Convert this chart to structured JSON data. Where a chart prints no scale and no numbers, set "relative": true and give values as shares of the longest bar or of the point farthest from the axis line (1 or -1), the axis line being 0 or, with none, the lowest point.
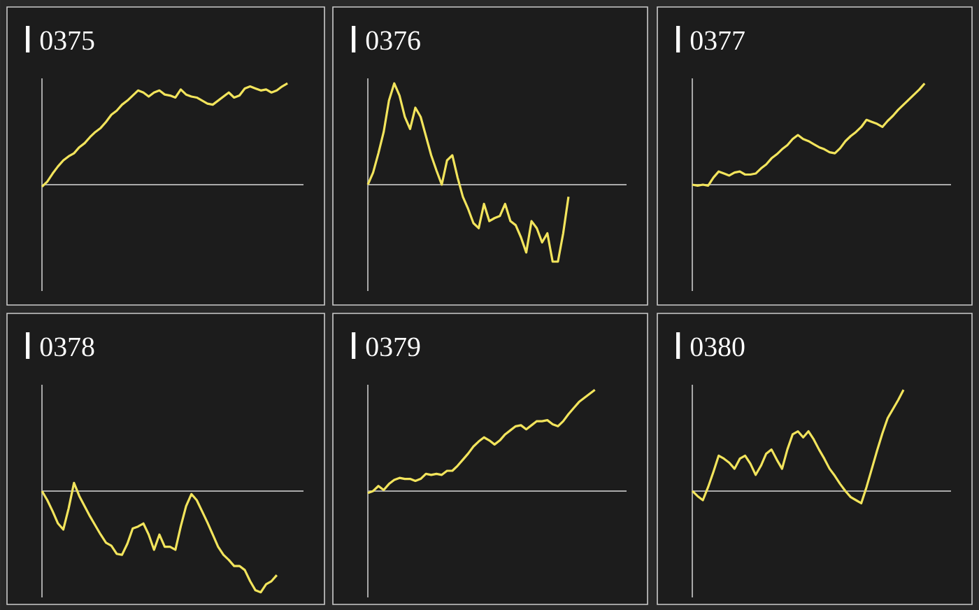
{
  "chart_data": [
    {
      "type": "line",
      "title": "0375",
      "color": "#f2e45c",
      "relative": true,
      "categories": [
        null,
        null,
        null,
        null,
        null,
        null,
        null,
        null,
        null,
        null,
        null,
        null,
        null,
        null,
        null,
        null,
        null,
        null,
        null,
        null,
        null,
        null,
        null,
        null,
        null,
        null,
        null,
        null,
        null,
        null,
        null,
        null,
        null,
        null,
        null,
        null,
        null,
        null,
        null,
        null,
        null,
        null,
        null,
        null,
        null,
        null,
        null,
        null,
        null,
        null
      ],
      "values": [
        -0.02,
        0.03,
        0.11,
        0.18,
        0.24,
        0.28,
        0.31,
        0.37,
        0.41,
        0.47,
        0.52,
        0.56,
        0.62,
        0.69,
        0.73,
        0.79,
        0.83,
        0.88,
        0.93,
        0.91,
        0.87,
        0.91,
        0.93,
        0.89,
        0.88,
        0.86,
        0.94,
        0.89,
        0.87,
        0.86,
        0.83,
        0.8,
        0.79,
        0.83,
        0.87,
        0.91,
        0.86,
        0.88,
        0.95,
        0.97,
        0.95,
        0.93,
        0.94,
        0.91,
        0.93,
        0.97,
        1.0,
        null,
        null,
        null
      ]
    },
    {
      "type": "line",
      "title": "0376",
      "color": "#f2e45c",
      "relative": true,
      "categories": [
        null,
        null,
        null,
        null,
        null,
        null,
        null,
        null,
        null,
        null,
        null,
        null,
        null,
        null,
        null,
        null,
        null,
        null,
        null,
        null,
        null,
        null,
        null,
        null,
        null,
        null,
        null,
        null,
        null,
        null,
        null,
        null,
        null,
        null,
        null,
        null,
        null,
        null,
        null,
        null,
        null,
        null,
        null,
        null,
        null,
        null,
        null,
        null,
        null,
        null
      ],
      "values": [
        0,
        0.12,
        0.31,
        0.52,
        0.83,
        1,
        0.88,
        0.67,
        0.55,
        0.76,
        0.67,
        0.48,
        0.29,
        0.14,
        0,
        0.24,
        0.29,
        0.07,
        -0.12,
        -0.24,
        -0.38,
        -0.43,
        -0.19,
        -0.36,
        -0.33,
        -0.31,
        -0.19,
        -0.36,
        -0.4,
        -0.52,
        -0.67,
        -0.36,
        -0.43,
        -0.57,
        -0.48,
        -0.76,
        -0.76,
        -0.48,
        -0.12,
        null,
        null,
        null,
        null,
        null,
        null,
        null,
        null,
        null,
        null,
        null
      ]
    },
    {
      "type": "line",
      "title": "0377",
      "color": "#f2e45c",
      "relative": true,
      "categories": [
        null,
        null,
        null,
        null,
        null,
        null,
        null,
        null,
        null,
        null,
        null,
        null,
        null,
        null,
        null,
        null,
        null,
        null,
        null,
        null,
        null,
        null,
        null,
        null,
        null,
        null,
        null,
        null,
        null,
        null,
        null,
        null,
        null,
        null,
        null,
        null,
        null,
        null,
        null,
        null,
        null,
        null,
        null,
        null,
        null,
        null,
        null,
        null,
        null,
        null
      ],
      "values": [
        0,
        -0.01,
        0,
        -0.01,
        0.07,
        0.13,
        0.11,
        0.09,
        0.12,
        0.13,
        0.1,
        0.1,
        0.11,
        0.16,
        0.2,
        0.26,
        0.3,
        0.35,
        0.39,
        0.45,
        0.49,
        0.45,
        0.43,
        0.4,
        0.37,
        0.35,
        0.32,
        0.31,
        0.36,
        0.43,
        0.48,
        0.52,
        0.57,
        0.64,
        0.62,
        0.6,
        0.57,
        0.63,
        0.68,
        0.74,
        0.79,
        0.84,
        0.89,
        0.94,
        1,
        null,
        null,
        null,
        null,
        null
      ]
    },
    {
      "type": "line",
      "title": "0378",
      "color": "#f2e45c",
      "relative": true,
      "categories": [
        null,
        null,
        null,
        null,
        null,
        null,
        null,
        null,
        null,
        null,
        null,
        null,
        null,
        null,
        null,
        null,
        null,
        null,
        null,
        null,
        null,
        null,
        null,
        null,
        null,
        null,
        null,
        null,
        null,
        null,
        null,
        null,
        null,
        null,
        null,
        null,
        null,
        null,
        null,
        null,
        null,
        null,
        null,
        null,
        null,
        null,
        null,
        null,
        null,
        null
      ],
      "values": [
        0,
        -0.09,
        -0.2,
        -0.32,
        -0.38,
        -0.17,
        0.08,
        -0.05,
        -0.15,
        -0.25,
        -0.34,
        -0.43,
        -0.51,
        -0.54,
        -0.62,
        -0.63,
        -0.52,
        -0.37,
        -0.35,
        -0.32,
        -0.43,
        -0.58,
        -0.43,
        -0.55,
        -0.55,
        -0.58,
        -0.35,
        -0.15,
        -0.03,
        -0.09,
        -0.2,
        -0.31,
        -0.43,
        -0.55,
        -0.63,
        -0.68,
        -0.74,
        -0.74,
        -0.78,
        -0.89,
        -0.98,
        -1,
        -0.92,
        -0.89,
        -0.83,
        null,
        null,
        null,
        null,
        null
      ]
    },
    {
      "type": "line",
      "title": "0379",
      "color": "#f2e45c",
      "relative": true,
      "categories": [
        null,
        null,
        null,
        null,
        null,
        null,
        null,
        null,
        null,
        null,
        null,
        null,
        null,
        null,
        null,
        null,
        null,
        null,
        null,
        null,
        null,
        null,
        null,
        null,
        null,
        null,
        null,
        null,
        null,
        null,
        null,
        null,
        null,
        null,
        null,
        null,
        null,
        null,
        null,
        null,
        null,
        null,
        null,
        null,
        null,
        null,
        null,
        null,
        null,
        null
      ],
      "values": [
        -0.02,
        0,
        0.05,
        0.01,
        0.07,
        0.11,
        0.13,
        0.12,
        0.12,
        0.1,
        0.12,
        0.17,
        0.16,
        0.17,
        0.16,
        0.2,
        0.2,
        0.25,
        0.31,
        0.37,
        0.44,
        0.49,
        0.53,
        0.5,
        0.46,
        0.5,
        0.56,
        0.6,
        0.64,
        0.65,
        0.61,
        0.65,
        0.69,
        0.69,
        0.7,
        0.66,
        0.64,
        0.69,
        0.76,
        0.82,
        0.88,
        0.92,
        0.96,
        1,
        null,
        null,
        null,
        null,
        null,
        null
      ]
    },
    {
      "type": "line",
      "title": "0380",
      "color": "#f2e45c",
      "relative": true,
      "categories": [
        null,
        null,
        null,
        null,
        null,
        null,
        null,
        null,
        null,
        null,
        null,
        null,
        null,
        null,
        null,
        null,
        null,
        null,
        null,
        null,
        null,
        null,
        null,
        null,
        null,
        null,
        null,
        null,
        null,
        null,
        null,
        null,
        null,
        null,
        null,
        null,
        null,
        null,
        null,
        null,
        null,
        null,
        null,
        null,
        null,
        null,
        null,
        null,
        null,
        null
      ],
      "values": [
        0,
        -0.05,
        -0.09,
        0.04,
        0.19,
        0.35,
        0.32,
        0.28,
        0.22,
        0.32,
        0.35,
        0.27,
        0.16,
        0.25,
        0.37,
        0.41,
        0.31,
        0.22,
        0.41,
        0.56,
        0.59,
        0.53,
        0.59,
        0.51,
        0.41,
        0.32,
        0.22,
        0.15,
        0.07,
        0,
        -0.06,
        -0.09,
        -0.12,
        0.04,
        0.22,
        0.4,
        0.57,
        0.72,
        0.81,
        0.9,
        1,
        null,
        null,
        null,
        null,
        null,
        null,
        null,
        null,
        null
      ]
    }
  ]
}
